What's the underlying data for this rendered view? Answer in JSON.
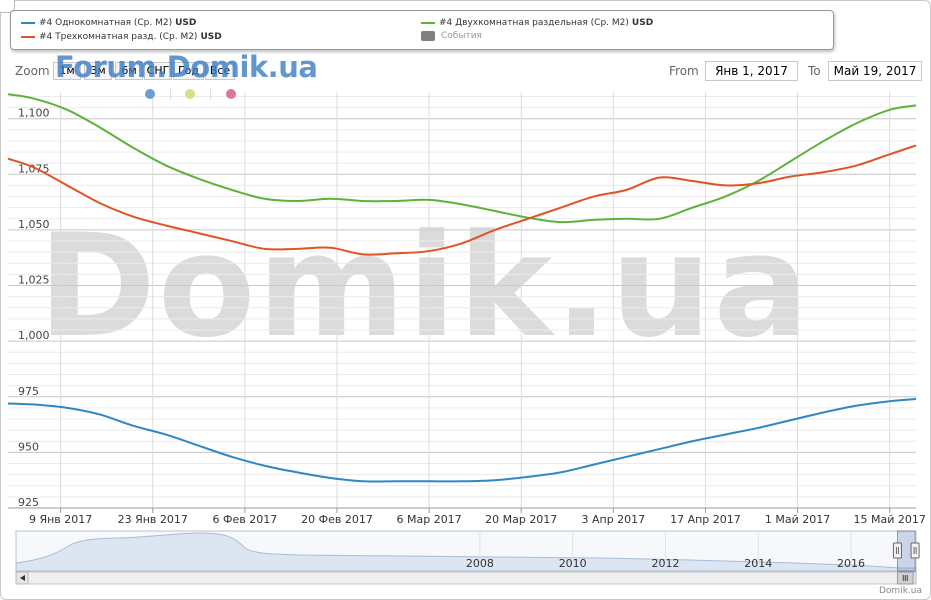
{
  "legend": {
    "items": [
      {
        "label": "#4 Однокомнатная (Ср. М2)",
        "unit": "USD",
        "color": "#2f87c4"
      },
      {
        "label": "#4 Двухкомнатная раздельная (Ср. М2)",
        "unit": "USD",
        "color": "#5cb338"
      },
      {
        "label": "#4 Трехкомнатная разд. (Ср. М2)",
        "unit": "USD",
        "color": "#e05424"
      },
      {
        "label": "События",
        "unit": "",
        "color": "#808080"
      }
    ]
  },
  "range_selector": {
    "zoom_label": "Zoom",
    "buttons": [
      "1м",
      "3м",
      "6м",
      "СНГ",
      "Год",
      "Все"
    ],
    "from_label": "From",
    "from_value": "Янв 1, 2017",
    "to_label": "To",
    "to_value": "Май 19, 2017"
  },
  "watermarks": {
    "small": "Forum.Domik.ua",
    "big": "Domik.ua"
  },
  "event_dots": [
    {
      "color": "#6b9fd4"
    },
    {
      "color": "#d6df8a"
    },
    {
      "color": "#d9789a"
    }
  ],
  "credit": "Domik.ua",
  "chart_data": {
    "type": "line",
    "title": "",
    "xlabel": "",
    "ylabel": "",
    "ylim": [
      925,
      1112
    ],
    "xlim": [
      "2017-01-01",
      "2017-05-19"
    ],
    "grid": true,
    "legend_position": "top",
    "y_ticks": [
      925,
      950,
      975,
      1000,
      1025,
      1050,
      1075,
      1100
    ],
    "y_tick_labels": [
      "925",
      "950",
      "975",
      "1,000",
      "1,025",
      "1,050",
      "1,075",
      "1,100"
    ],
    "x_ticks": [
      "2017-01-09",
      "2017-01-23",
      "2017-02-06",
      "2017-02-20",
      "2017-03-06",
      "2017-03-20",
      "2017-04-03",
      "2017-04-17",
      "2017-05-01",
      "2017-05-15"
    ],
    "x_tick_labels": [
      "9 Янв 2017",
      "23 Янв 2017",
      "6 Фев 2017",
      "20 Фев 2017",
      "6 Мар 2017",
      "20 Мар 2017",
      "3 Апр 2017",
      "17 Апр 2017",
      "1 Май 2017",
      "15 Май 2017"
    ],
    "series": [
      {
        "name": "#4 Однокомнатная (Ср. М2)",
        "color": "#2f87c4",
        "x": [
          "2017-01-01",
          "2017-01-05",
          "2017-01-10",
          "2017-01-15",
          "2017-01-20",
          "2017-01-25",
          "2017-01-30",
          "2017-02-04",
          "2017-02-09",
          "2017-02-14",
          "2017-02-19",
          "2017-02-24",
          "2017-03-01",
          "2017-03-06",
          "2017-03-11",
          "2017-03-16",
          "2017-03-21",
          "2017-03-26",
          "2017-03-31",
          "2017-04-05",
          "2017-04-10",
          "2017-04-15",
          "2017-04-20",
          "2017-04-25",
          "2017-04-30",
          "2017-05-05",
          "2017-05-10",
          "2017-05-15",
          "2017-05-19"
        ],
        "y": [
          972,
          971.5,
          970,
          967,
          962,
          958,
          953,
          948,
          944,
          941,
          938.5,
          937,
          937,
          937,
          937,
          937.5,
          939,
          941,
          944.5,
          948,
          951.5,
          955,
          958,
          961,
          964.5,
          968,
          971,
          973,
          974
        ]
      },
      {
        "name": "#4 Двухкомнатная раздельная (Ср. М2)",
        "color": "#5cb338",
        "x": [
          "2017-01-01",
          "2017-01-05",
          "2017-01-10",
          "2017-01-15",
          "2017-01-20",
          "2017-01-25",
          "2017-01-30",
          "2017-02-04",
          "2017-02-09",
          "2017-02-14",
          "2017-02-19",
          "2017-02-24",
          "2017-03-01",
          "2017-03-06",
          "2017-03-11",
          "2017-03-16",
          "2017-03-21",
          "2017-03-26",
          "2017-03-31",
          "2017-04-05",
          "2017-04-10",
          "2017-04-15",
          "2017-04-20",
          "2017-04-25",
          "2017-04-30",
          "2017-05-05",
          "2017-05-10",
          "2017-05-15",
          "2017-05-19"
        ],
        "y": [
          1111,
          1109,
          1104,
          1096,
          1087,
          1079,
          1073,
          1068,
          1064,
          1063,
          1064,
          1063,
          1063,
          1063.5,
          1061.5,
          1058.5,
          1055.5,
          1053.5,
          1054.5,
          1055,
          1055,
          1060,
          1065,
          1072,
          1081,
          1090,
          1098,
          1104,
          1106
        ]
      },
      {
        "name": "#4 Трехкомнатная разд. (Ср. М2)",
        "color": "#e05424",
        "x": [
          "2017-01-01",
          "2017-01-05",
          "2017-01-10",
          "2017-01-15",
          "2017-01-20",
          "2017-01-25",
          "2017-01-30",
          "2017-02-04",
          "2017-02-09",
          "2017-02-14",
          "2017-02-19",
          "2017-02-24",
          "2017-03-01",
          "2017-03-06",
          "2017-03-11",
          "2017-03-16",
          "2017-03-21",
          "2017-03-26",
          "2017-03-31",
          "2017-04-05",
          "2017-04-10",
          "2017-04-15",
          "2017-04-20",
          "2017-04-25",
          "2017-04-30",
          "2017-05-05",
          "2017-05-10",
          "2017-05-15",
          "2017-05-19"
        ],
        "y": [
          1082,
          1078,
          1070,
          1062,
          1056,
          1052,
          1048.5,
          1045,
          1041.5,
          1041.5,
          1042,
          1039,
          1039.5,
          1040.5,
          1044,
          1050,
          1055,
          1060,
          1065,
          1068,
          1073.5,
          1072,
          1070,
          1071,
          1074,
          1076,
          1079,
          1084,
          1088
        ]
      }
    ]
  },
  "navigator": {
    "year_labels": [
      "2008",
      "2010",
      "2012",
      "2014",
      "2016"
    ],
    "year_values": [
      2008,
      2010,
      2012,
      2014,
      2016
    ],
    "range_start": 1998,
    "range_end": 2017.4,
    "window_start": 2017.0,
    "window_end": 2017.38
  }
}
